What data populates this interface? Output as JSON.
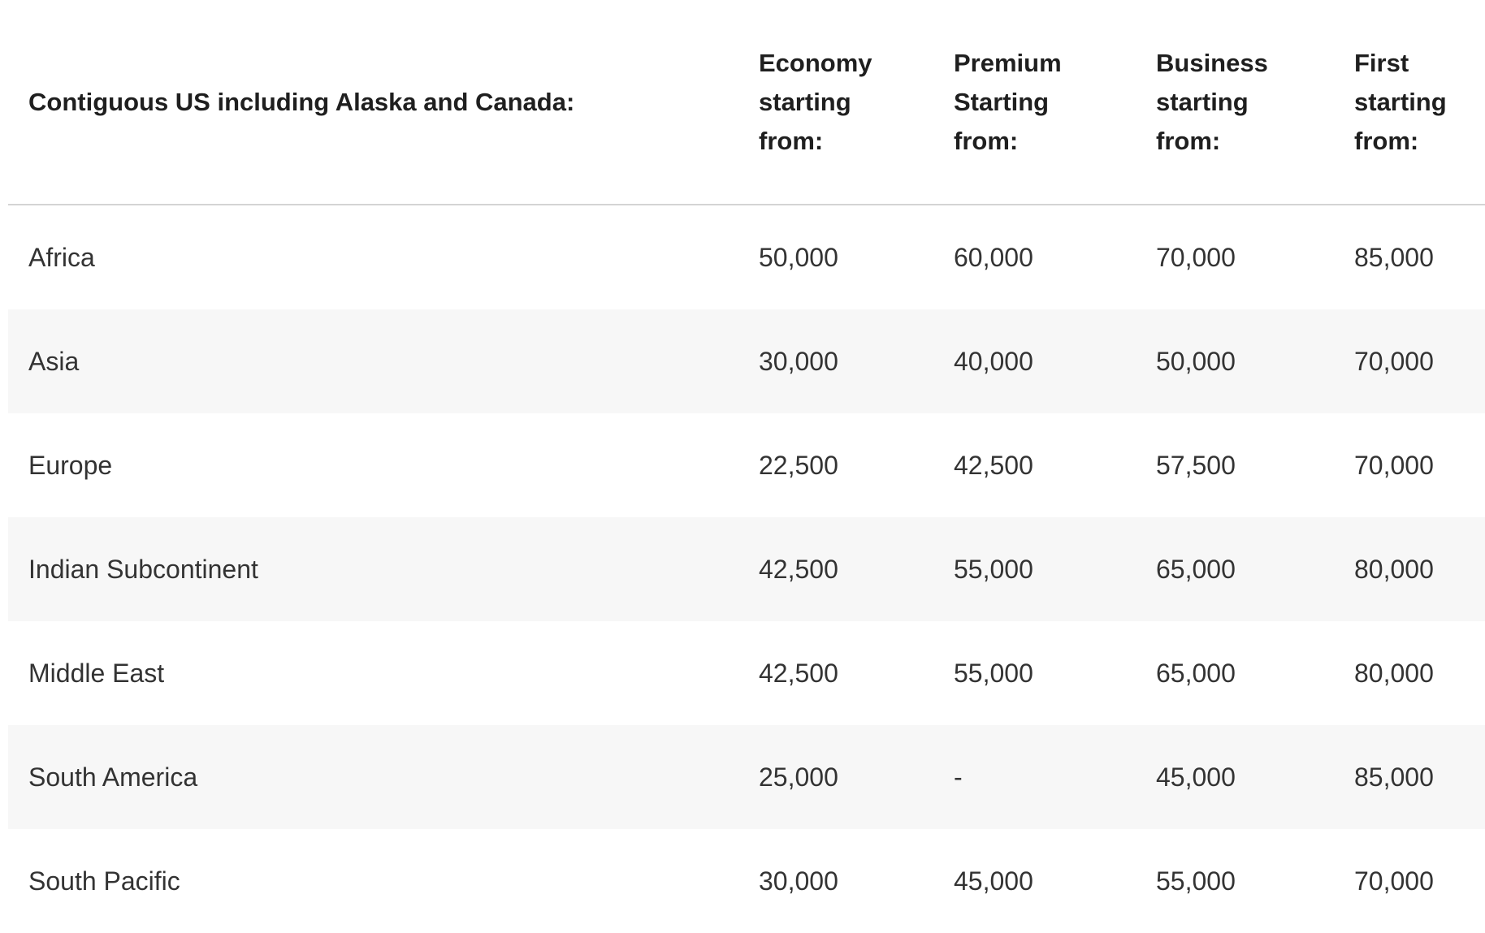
{
  "table": {
    "headers": {
      "region": "Contiguous US including Alaska and Canada:",
      "economy": [
        "Economy",
        "starting",
        "from:"
      ],
      "premium": [
        "Premium",
        "Starting",
        "from:"
      ],
      "business": [
        "Business",
        "starting",
        "from:"
      ],
      "first": [
        "First",
        "starting",
        "from:"
      ]
    },
    "rows": [
      {
        "region": "Africa",
        "economy": "50,000",
        "premium": "60,000",
        "business": "70,000",
        "first": "85,000"
      },
      {
        "region": "Asia",
        "economy": "30,000",
        "premium": "40,000",
        "business": "50,000",
        "first": "70,000"
      },
      {
        "region": "Europe",
        "economy": "22,500",
        "premium": "42,500",
        "business": "57,500",
        "first": "70,000"
      },
      {
        "region": "Indian Subcontinent",
        "economy": "42,500",
        "premium": "55,000",
        "business": "65,000",
        "first": "80,000"
      },
      {
        "region": "Middle East",
        "economy": "42,500",
        "premium": "55,000",
        "business": "65,000",
        "first": "80,000"
      },
      {
        "region": "South America",
        "economy": "25,000",
        "premium": "-",
        "business": "45,000",
        "first": "85,000"
      },
      {
        "region": "South Pacific",
        "economy": "30,000",
        "premium": "45,000",
        "business": "55,000",
        "first": "70,000"
      }
    ]
  }
}
